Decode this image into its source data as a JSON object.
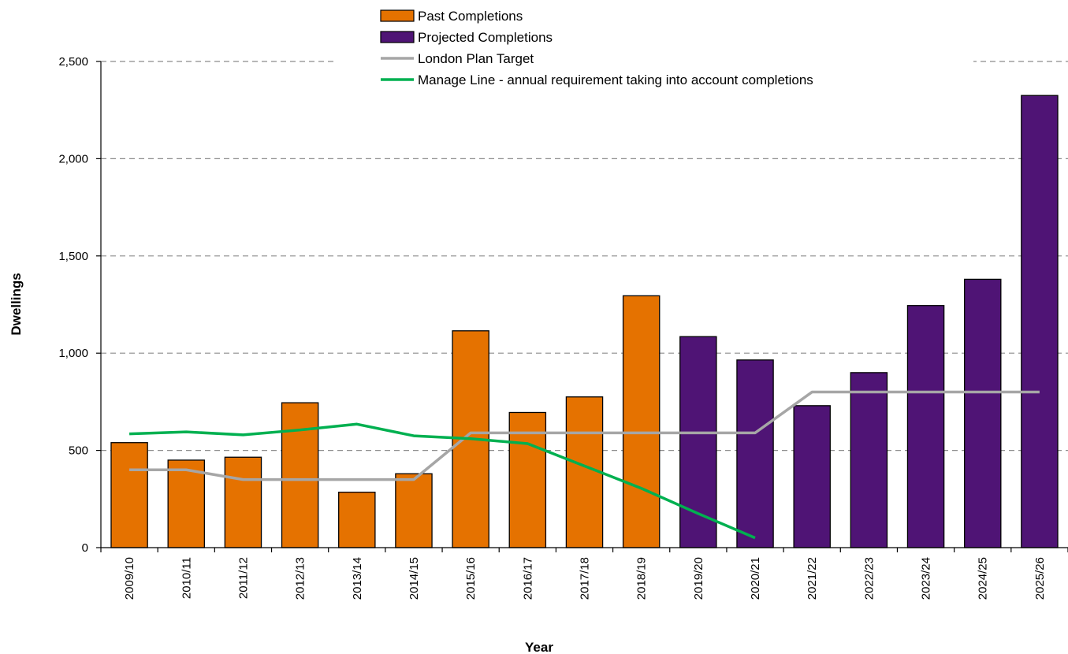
{
  "chart_data": {
    "type": "bar",
    "title": "",
    "xlabel": "Year",
    "ylabel": "Dwellings",
    "ylim": [
      0,
      2500
    ],
    "yticks": [
      0,
      500,
      1000,
      1500,
      2000,
      2500
    ],
    "ytick_labels": [
      "0",
      "500",
      "1,000",
      "1,500",
      "2,000",
      "2,500"
    ],
    "grid": "horizontal dashed",
    "legend_position": "top-center",
    "categories": [
      "2009/10",
      "2010/11",
      "2011/12",
      "2012/13",
      "2013/14",
      "2014/15",
      "2015/16",
      "2016/17",
      "2017/18",
      "2018/19",
      "2019/20",
      "2020/21",
      "2021/22",
      "2022/23",
      "2023/24",
      "2024/25",
      "2025/26"
    ],
    "series": [
      {
        "name": "Past Completions",
        "kind": "bar",
        "color": "#E57200",
        "values": [
          540,
          450,
          465,
          745,
          285,
          380,
          1115,
          695,
          775,
          1295,
          null,
          null,
          null,
          null,
          null,
          null,
          null
        ]
      },
      {
        "name": "Projected Completions",
        "kind": "bar",
        "color": "#4F1475",
        "values": [
          null,
          null,
          null,
          null,
          null,
          null,
          null,
          null,
          null,
          null,
          1085,
          965,
          730,
          900,
          1245,
          1380,
          2325
        ]
      },
      {
        "name": "London Plan Target",
        "kind": "line",
        "color": "#A6A6A6",
        "values": [
          400,
          400,
          350,
          350,
          350,
          350,
          590,
          590,
          590,
          590,
          590,
          590,
          800,
          800,
          800,
          800,
          800
        ]
      },
      {
        "name": "Manage Line - annual requirement taking into account completions",
        "kind": "line",
        "color": "#00B050",
        "values": [
          585,
          595,
          580,
          605,
          635,
          575,
          560,
          535,
          420,
          305,
          175,
          50,
          null,
          null,
          null,
          null,
          null
        ]
      }
    ]
  }
}
